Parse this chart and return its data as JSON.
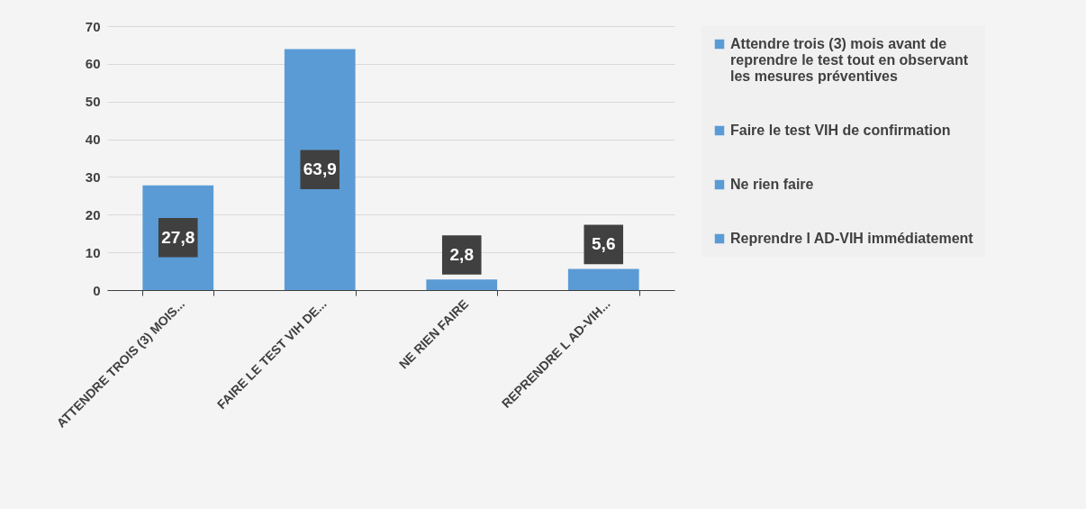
{
  "chart_data": {
    "type": "bar",
    "categories": [
      "ATTENDRE TROIS (3) MOIS...",
      "FAIRE LE TEST VIH DE...",
      "NE RIEN FAIRE",
      "REPRENDRE L AD-VIH..."
    ],
    "series": [
      {
        "name": "Attendre trois (3) mois avant de reprendre le test tout en observant les mesures préventives",
        "color": "#5b9bd5",
        "values": [
          27.8,
          null,
          null,
          null
        ],
        "value_labels": [
          "27,8",
          null,
          null,
          null
        ]
      },
      {
        "name": "Faire le test VIH de confirmation",
        "color": "#5b9bd5",
        "values": [
          null,
          63.9,
          null,
          null
        ],
        "value_labels": [
          null,
          "63,9",
          null,
          null
        ]
      },
      {
        "name": "Ne rien faire",
        "color": "#5b9bd5",
        "values": [
          null,
          null,
          2.8,
          null
        ],
        "value_labels": [
          null,
          null,
          "2,8",
          null
        ]
      },
      {
        "name": "Reprendre l AD-VIH immédiatement",
        "color": "#5b9bd5",
        "values": [
          null,
          null,
          null,
          5.6
        ],
        "value_labels": [
          null,
          null,
          null,
          "5,6"
        ]
      }
    ],
    "ylim": [
      0,
      70
    ],
    "yticks": [
      0,
      10,
      20,
      30,
      40,
      50,
      60,
      70
    ],
    "grid": "y",
    "legend": "right"
  }
}
